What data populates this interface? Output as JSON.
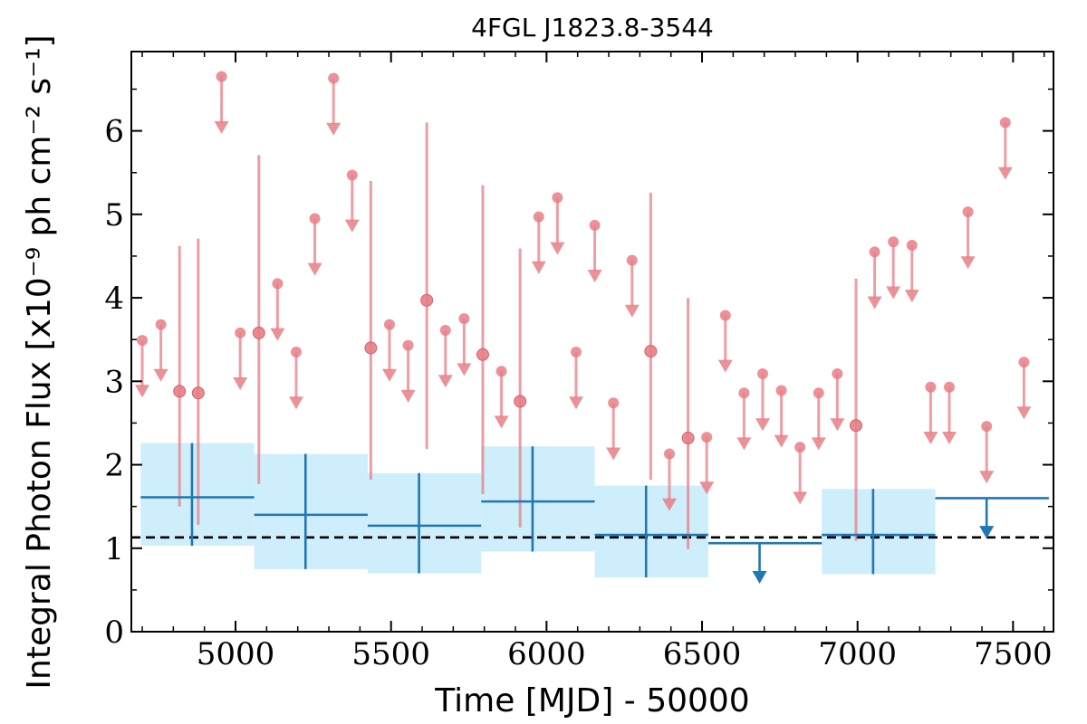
{
  "chart_data": {
    "type": "scatter",
    "title": "4FGL J1823.8-3544",
    "xlabel": "Time [MJD] - 50000",
    "ylabel": "Integral Photon Flux [x10⁻⁹ ph cm⁻² s⁻¹]",
    "xlim": [
      4665,
      7630
    ],
    "ylim": [
      0,
      6.95
    ],
    "xticks": [
      5000,
      5500,
      6000,
      6500,
      7000,
      7500
    ],
    "yticks": [
      0,
      1,
      2,
      3,
      4,
      5,
      6
    ],
    "xtick_labels": [
      "5000",
      "5500",
      "6000",
      "6500",
      "7000",
      "7500"
    ],
    "ytick_labels": [
      "0",
      "1",
      "2",
      "3",
      "4",
      "5",
      "6"
    ],
    "reference_line": {
      "y": 1.13,
      "style": "dashed",
      "color": "#000000"
    },
    "colors": {
      "short_bins": "#e87e86",
      "long_bins": "#1f77b4",
      "long_band": "#cfeefc"
    },
    "series": [
      {
        "bin_width": 60,
        "upper_limits": [
          {
            "x": 4700,
            "y": 3.49
          },
          {
            "x": 4760,
            "y": 3.68
          },
          {
            "x": 4955,
            "y": 6.65
          },
          {
            "x": 5015,
            "y": 3.58
          },
          {
            "x": 5135,
            "y": 4.17
          },
          {
            "x": 5195,
            "y": 3.35
          },
          {
            "x": 5255,
            "y": 4.95
          },
          {
            "x": 5315,
            "y": 6.63
          },
          {
            "x": 5375,
            "y": 5.47
          },
          {
            "x": 5495,
            "y": 3.68
          },
          {
            "x": 5555,
            "y": 3.43
          },
          {
            "x": 5675,
            "y": 3.61
          },
          {
            "x": 5735,
            "y": 3.75
          },
          {
            "x": 5855,
            "y": 3.12
          },
          {
            "x": 5975,
            "y": 4.97
          },
          {
            "x": 6035,
            "y": 5.2
          },
          {
            "x": 6095,
            "y": 3.35
          },
          {
            "x": 6155,
            "y": 4.87
          },
          {
            "x": 6215,
            "y": 2.74
          },
          {
            "x": 6275,
            "y": 4.45
          },
          {
            "x": 6395,
            "y": 2.13
          },
          {
            "x": 6515,
            "y": 2.33
          },
          {
            "x": 6575,
            "y": 3.79
          },
          {
            "x": 6635,
            "y": 2.86
          },
          {
            "x": 6695,
            "y": 3.09
          },
          {
            "x": 6755,
            "y": 2.89
          },
          {
            "x": 6815,
            "y": 2.21
          },
          {
            "x": 6875,
            "y": 2.86
          },
          {
            "x": 6935,
            "y": 3.09
          },
          {
            "x": 7055,
            "y": 4.55
          },
          {
            "x": 7115,
            "y": 4.67
          },
          {
            "x": 7175,
            "y": 4.63
          },
          {
            "x": 7235,
            "y": 2.93
          },
          {
            "x": 7295,
            "y": 2.93
          },
          {
            "x": 7355,
            "y": 5.03
          },
          {
            "x": 7415,
            "y": 2.46
          },
          {
            "x": 7475,
            "y": 6.1
          },
          {
            "x": 7535,
            "y": 3.23
          }
        ],
        "detections": [
          {
            "x": 4820,
            "y": 2.88,
            "ylo": 1.5,
            "yhi": 4.62
          },
          {
            "x": 4880,
            "y": 2.86,
            "ylo": 1.28,
            "yhi": 4.71
          },
          {
            "x": 5075,
            "y": 3.58,
            "ylo": 1.77,
            "yhi": 5.71
          },
          {
            "x": 5435,
            "y": 3.4,
            "ylo": 1.82,
            "yhi": 5.4
          },
          {
            "x": 5615,
            "y": 3.97,
            "ylo": 2.19,
            "yhi": 6.1
          },
          {
            "x": 5795,
            "y": 3.32,
            "ylo": 1.65,
            "yhi": 5.35
          },
          {
            "x": 5915,
            "y": 2.76,
            "ylo": 1.25,
            "yhi": 4.59
          },
          {
            "x": 6335,
            "y": 3.36,
            "ylo": 1.82,
            "yhi": 5.26
          },
          {
            "x": 6455,
            "y": 2.32,
            "ylo": 0.99,
            "yhi": 4.0
          },
          {
            "x": 6995,
            "y": 2.47,
            "ylo": 1.09,
            "yhi": 4.23
          }
        ]
      },
      {
        "bin_width": 365,
        "detections": [
          {
            "x": 4860,
            "xlo": 4695,
            "xhi": 5060,
            "y": 1.61,
            "ylo": 1.03,
            "yhi": 2.26
          },
          {
            "x": 5225,
            "xlo": 5060,
            "xhi": 5425,
            "y": 1.4,
            "ylo": 0.75,
            "yhi": 2.13
          },
          {
            "x": 5590,
            "xlo": 5425,
            "xhi": 5790,
            "y": 1.27,
            "ylo": 0.7,
            "yhi": 1.9
          },
          {
            "x": 5955,
            "xlo": 5790,
            "xhi": 6155,
            "y": 1.56,
            "ylo": 0.96,
            "yhi": 2.22
          },
          {
            "x": 6320,
            "xlo": 6155,
            "xhi": 6520,
            "y": 1.16,
            "ylo": 0.65,
            "yhi": 1.75
          },
          {
            "x": 7050,
            "xlo": 6885,
            "xhi": 7250,
            "y": 1.16,
            "ylo": 0.69,
            "yhi": 1.71
          }
        ],
        "upper_limits": [
          {
            "x": 6685,
            "xlo": 6520,
            "xhi": 6885,
            "y": 1.06
          },
          {
            "x": 7415,
            "xlo": 7250,
            "xhi": 7615,
            "y": 1.6
          }
        ]
      }
    ]
  }
}
